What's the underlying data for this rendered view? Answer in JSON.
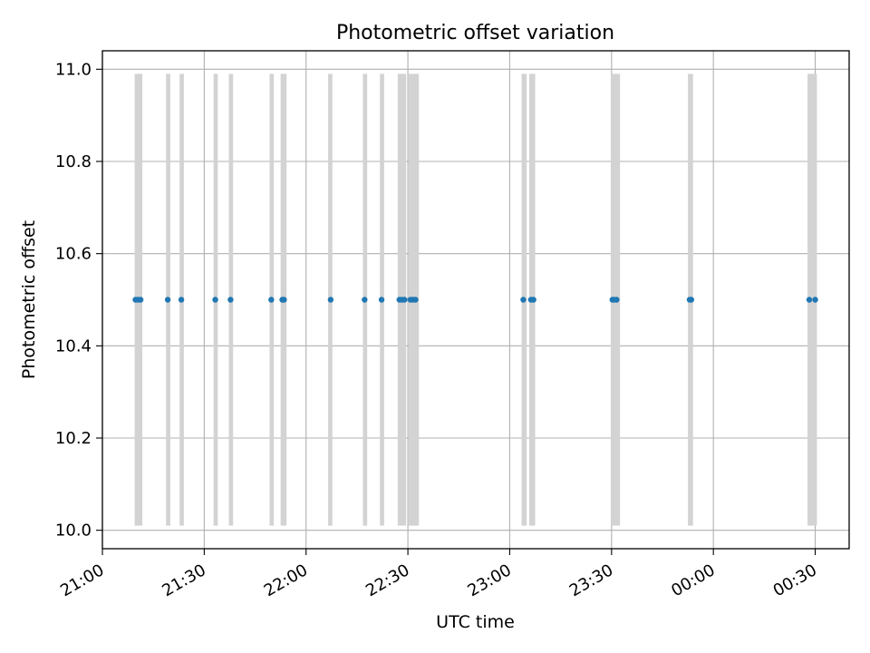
{
  "chart_data": {
    "type": "scatter",
    "title": "Photometric offset variation",
    "xlabel": "UTC time",
    "ylabel": "Photometric offset",
    "x_axis_type": "time",
    "xlim": [
      "21:00",
      "00:40"
    ],
    "ylim": [
      9.96,
      11.04
    ],
    "xticks": [
      "21:00",
      "21:30",
      "22:00",
      "22:30",
      "23:00",
      "23:30",
      "00:00",
      "00:30"
    ],
    "yticks": [
      "10.0",
      "10.2",
      "10.4",
      "10.6",
      "10.8",
      "11.0"
    ],
    "grid": true,
    "legend": "none",
    "colors": {
      "points": "#1f77b4",
      "bands": "#d3d3d3",
      "grid": "#b0b0b0"
    },
    "bands": {
      "y_range": [
        10.01,
        10.99
      ],
      "intervals": [
        [
          "21:09:30",
          "21:11:45"
        ],
        [
          "21:18:45",
          "21:20:00"
        ],
        [
          "21:22:45",
          "21:24:00"
        ],
        [
          "21:32:45",
          "21:34:00"
        ],
        [
          "21:37:15",
          "21:38:30"
        ],
        [
          "21:49:15",
          "21:50:30"
        ],
        [
          "21:52:30",
          "21:54:15"
        ],
        [
          "22:06:30",
          "22:07:45"
        ],
        [
          "22:16:45",
          "22:18:00"
        ],
        [
          "22:21:45",
          "22:23:00"
        ],
        [
          "22:27:00",
          "22:29:30"
        ],
        [
          "22:30:15",
          "22:33:15"
        ],
        [
          "23:03:30",
          "23:05:00"
        ],
        [
          "23:05:45",
          "23:07:30"
        ],
        [
          "23:29:45",
          "23:32:30"
        ],
        [
          "23:52:30",
          "23:54:00"
        ],
        [
          "00:27:45",
          "00:30:30"
        ]
      ]
    },
    "series": [
      {
        "x": [
          "21:09:45",
          "21:10:30",
          "21:11:15",
          "21:19:15",
          "21:23:15",
          "21:33:15",
          "21:37:45",
          "21:49:45",
          "21:53:00",
          "21:53:30",
          "22:07:15",
          "22:17:15",
          "22:22:15",
          "22:27:30",
          "22:28:15",
          "22:29:00",
          "22:30:45",
          "22:31:30",
          "22:32:15",
          "23:04:00",
          "23:06:15",
          "23:07:00",
          "23:30:15",
          "23:30:45",
          "23:31:30",
          "23:53:00",
          "23:53:30",
          "00:28:15",
          "00:30:00"
        ],
        "y": [
          10.5,
          10.5,
          10.5,
          10.5,
          10.5,
          10.5,
          10.5,
          10.5,
          10.5,
          10.5,
          10.5,
          10.5,
          10.5,
          10.5,
          10.5,
          10.5,
          10.5,
          10.5,
          10.5,
          10.5,
          10.5,
          10.5,
          10.5,
          10.5,
          10.5,
          10.5,
          10.5,
          10.5,
          10.5
        ]
      }
    ]
  }
}
